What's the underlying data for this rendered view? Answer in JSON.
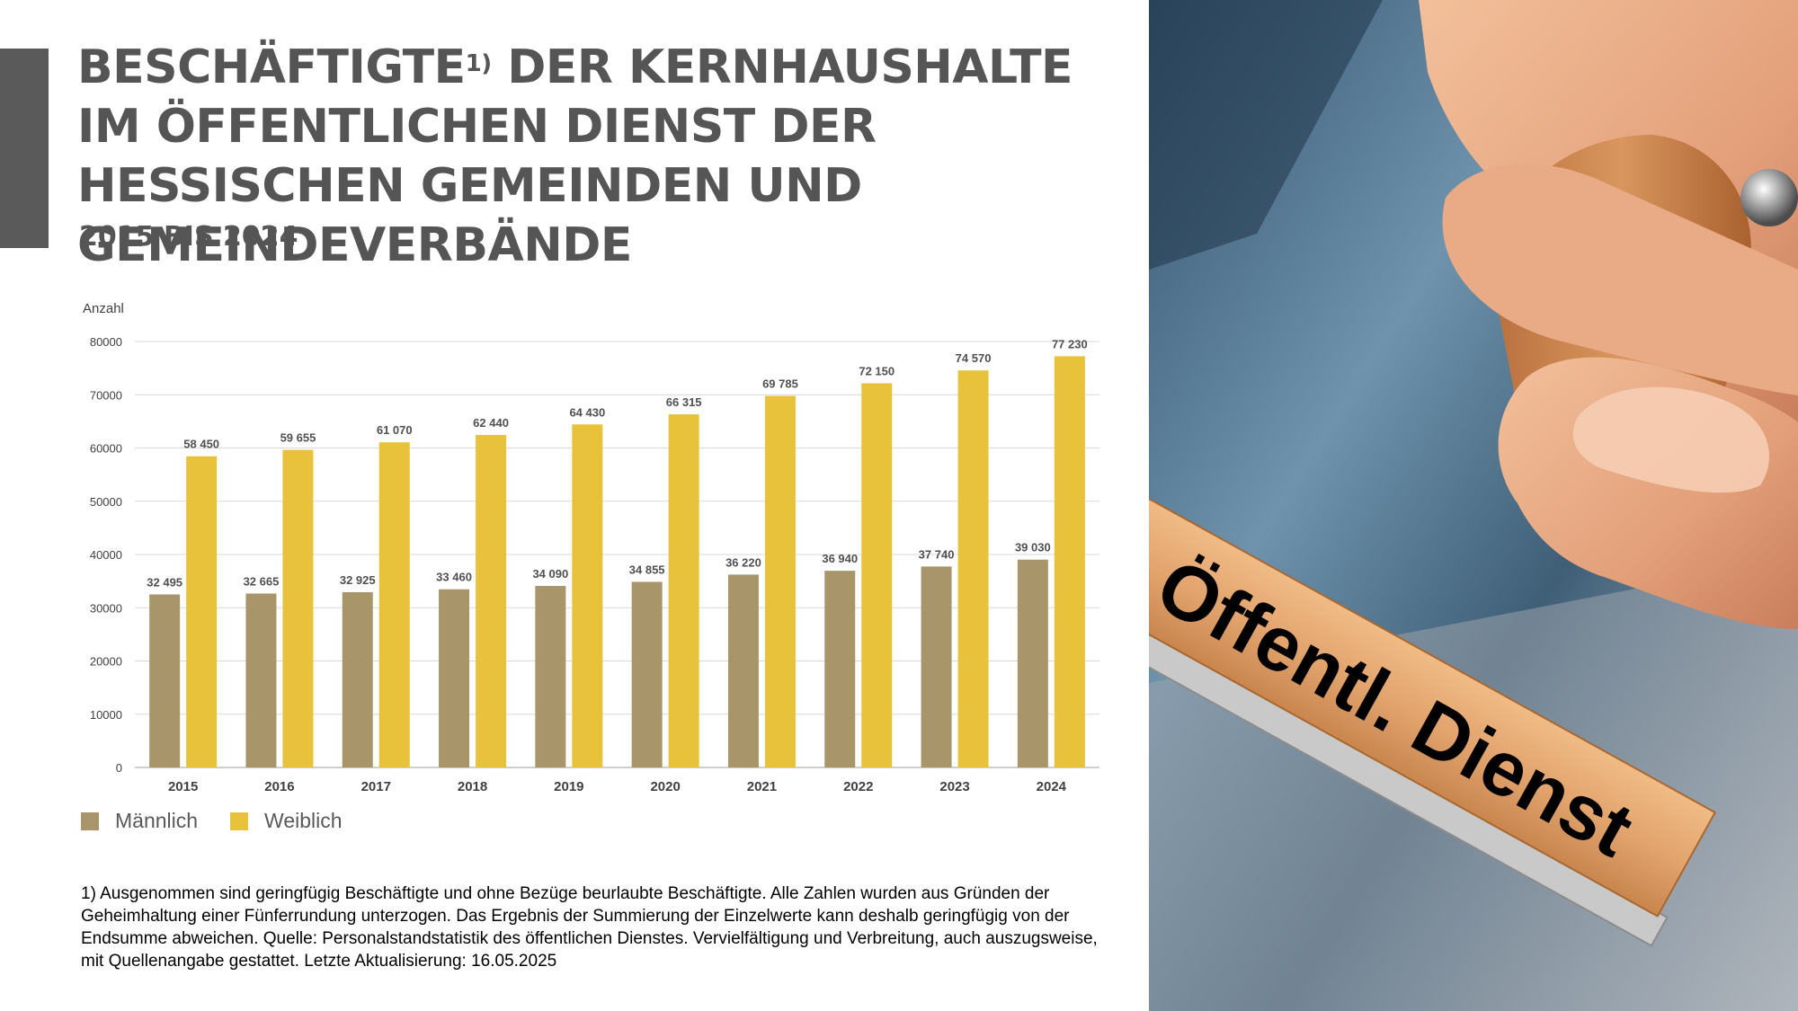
{
  "title": {
    "main_before": "BESCHÄFTIGTE",
    "footnote_marker": "1)",
    "main_after": " DER KERNHAUSHALTE IM ÖFFENTLICHEN DIENST DER HESSISCHEN GEMEINDEN UND GEMEINDEVERBÄNDE",
    "subtitle": "2015 BIS 2024"
  },
  "chart_data": {
    "type": "bar",
    "ylabel": "Anzahl",
    "ylim": [
      0,
      80000
    ],
    "yticks": [
      "0",
      "10000",
      "20000",
      "30000",
      "40000",
      "50000",
      "60000",
      "70000",
      "80000"
    ],
    "grid": true,
    "legend_position": "bottom-left",
    "categories": [
      "2015",
      "2016",
      "2017",
      "2018",
      "2019",
      "2020",
      "2021",
      "2022",
      "2023",
      "2024"
    ],
    "series": [
      {
        "name": "Männlich",
        "color": "#a8956a",
        "values": [
          32495,
          32665,
          32925,
          33460,
          34090,
          34855,
          36220,
          36940,
          37740,
          39030
        ],
        "labels": [
          "32 495",
          "32 665",
          "32 925",
          "33 460",
          "34 090",
          "34 855",
          "36 220",
          "36 940",
          "37 740",
          "39 030"
        ]
      },
      {
        "name": "Weiblich",
        "color": "#e8c23a",
        "values": [
          58450,
          59655,
          61070,
          62440,
          64430,
          66315,
          69785,
          72150,
          74570,
          77230
        ],
        "labels": [
          "58 450",
          "59 655",
          "61 070",
          "62 440",
          "64 430",
          "66 315",
          "69 785",
          "72 150",
          "74 570",
          "77 230"
        ]
      }
    ]
  },
  "footnote": "1) Ausgenommen sind geringfügig Beschäftigte und ohne Bezüge beurlaubte Beschäftigte. Alle Zahlen wurden aus Gründen der Geheimhaltung einer Fünferrundung unterzogen. Das Ergebnis der Summierung der Einzelwerte kann deshalb geringfügig von der Endsumme abweichen. Quelle: Personalstandstatistik des öffentlichen Dienstes. Vervielfältigung und Verbreitung, auch auszugsweise, mit Quellenangabe gestattet. Letzte Aktualisierung: 16.05.2025",
  "photo": {
    "stamp_text": "Öffentl. Dienst",
    "colors": {
      "stamp_wood": "#e3a46e",
      "skin": "#e6a47c",
      "background": "#5d7d98"
    }
  },
  "colors": {
    "accent_bar": "#5a5a5a",
    "title": "#555555",
    "grid": "#d9d9d9"
  }
}
